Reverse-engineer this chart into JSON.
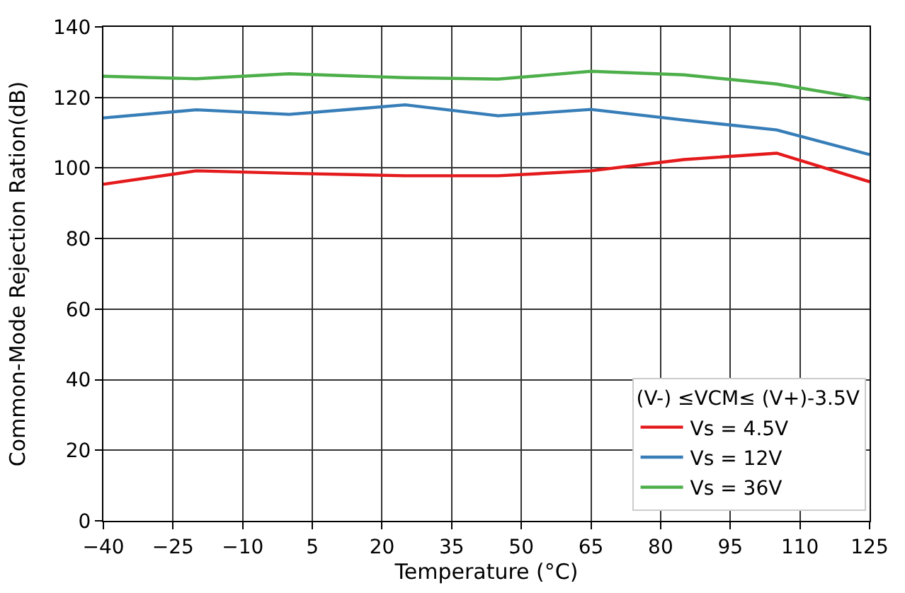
{
  "chart_data": {
    "type": "line",
    "xlabel": "Temperature (°C)",
    "ylabel": "Common-Mode Rejection Ration(dB)",
    "legend_title": "(V-) ≤VCM≤ (V+)-3.5V",
    "x": [
      -40,
      -20,
      0,
      25,
      45,
      65,
      85,
      105,
      125
    ],
    "series": [
      {
        "name": "Vs = 4.5V",
        "color": "#e41a1c",
        "values": [
          95.4,
          99.2,
          98.5,
          97.8,
          97.8,
          99.2,
          102.4,
          104.2,
          96.1
        ]
      },
      {
        "name": "Vs = 12V",
        "color": "#377eb8",
        "values": [
          114.2,
          116.5,
          115.2,
          117.9,
          114.8,
          116.6,
          113.6,
          110.8,
          103.8
        ]
      },
      {
        "name": "Vs = 36V",
        "color": "#4daf4a",
        "values": [
          126,
          125.3,
          126.7,
          125.6,
          125.2,
          127.4,
          126.4,
          123.8,
          119.4
        ]
      }
    ],
    "xlim": [
      -40,
      125
    ],
    "xticks": [
      {
        "value": -40,
        "label": "−40"
      },
      {
        "value": -25,
        "label": "−25"
      },
      {
        "value": -10,
        "label": "−10"
      },
      5,
      20,
      35,
      50,
      65,
      80,
      95,
      110,
      125
    ],
    "ylim": [
      0,
      140
    ],
    "yticks": [
      0,
      20,
      40,
      60,
      80,
      100,
      120,
      140
    ],
    "grid": true,
    "legend": "bottom right",
    "marker": "none",
    "line_style": "solid"
  }
}
